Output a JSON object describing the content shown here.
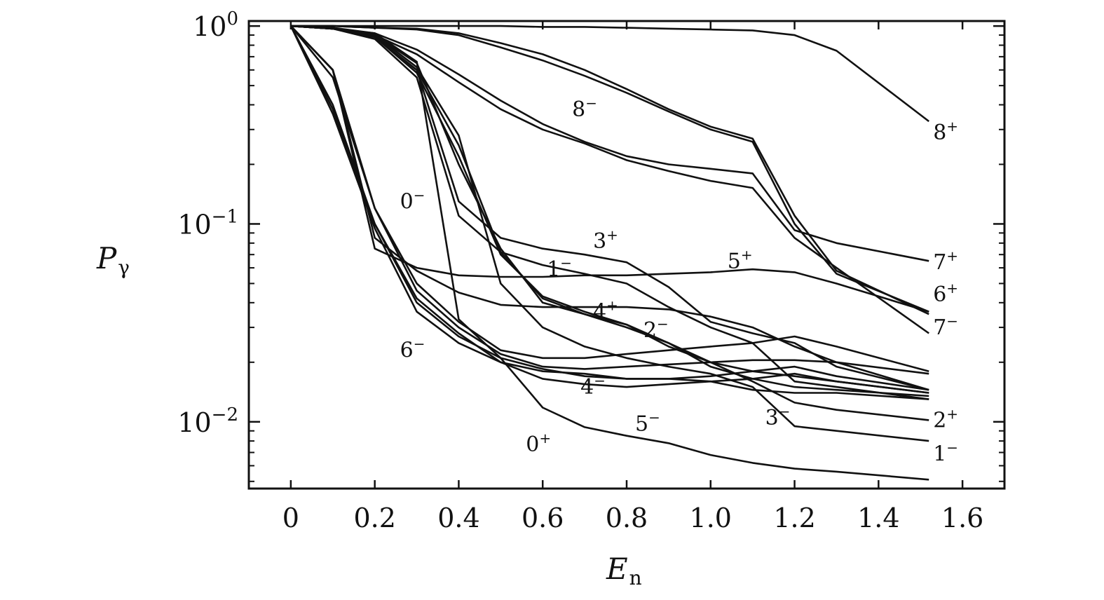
{
  "chart_data": {
    "type": "line",
    "title": "",
    "xlabel": "E",
    "xlabel_sub": "n",
    "ylabel": "P",
    "ylabel_sub": "γ",
    "xlim": [
      -0.1,
      1.7
    ],
    "ylim": [
      0.0046,
      1.06
    ],
    "yscale": "log",
    "grid": false,
    "x_ticks": [
      {
        "value": 0,
        "label": "0"
      },
      {
        "value": 0.2,
        "label": "0.2"
      },
      {
        "value": 0.4,
        "label": "0.4"
      },
      {
        "value": 0.6,
        "label": "0.6"
      },
      {
        "value": 0.8,
        "label": "0.8"
      },
      {
        "value": 1.0,
        "label": "1.0"
      },
      {
        "value": 1.2,
        "label": "1.2"
      },
      {
        "value": 1.4,
        "label": "1.4"
      },
      {
        "value": 1.6,
        "label": "1.6"
      }
    ],
    "y_ticks": [
      {
        "value": 1,
        "base": "10",
        "exp": "0"
      },
      {
        "value": 0.1,
        "base": "10",
        "exp": "−1"
      },
      {
        "value": 0.01,
        "base": "10",
        "exp": "−2"
      }
    ],
    "x": [
      0,
      0.1,
      0.2,
      0.3,
      0.4,
      0.5,
      0.6,
      0.7,
      0.8,
      0.9,
      1.0,
      1.1,
      1.2,
      1.3,
      1.52
    ],
    "series": [
      {
        "values": [
          1,
          1,
          1,
          1,
          1,
          1,
          0.99,
          0.99,
          0.98,
          0.97,
          0.96,
          0.95,
          0.9,
          0.75,
          0.33
        ]
      },
      {
        "values": [
          1,
          1,
          0.98,
          0.97,
          0.92,
          0.82,
          0.72,
          0.6,
          0.48,
          0.38,
          0.31,
          0.27,
          0.11,
          0.058,
          0.035
        ]
      },
      {
        "values": [
          1,
          1,
          0.98,
          0.96,
          0.9,
          0.78,
          0.67,
          0.56,
          0.46,
          0.37,
          0.3,
          0.26,
          0.1,
          0.056,
          0.036
        ]
      },
      {
        "values": [
          1,
          0.98,
          0.92,
          0.76,
          0.57,
          0.42,
          0.32,
          0.26,
          0.22,
          0.2,
          0.19,
          0.18,
          0.093,
          0.08,
          0.065
        ]
      },
      {
        "values": [
          1,
          0.98,
          0.9,
          0.72,
          0.52,
          0.38,
          0.3,
          0.255,
          0.21,
          0.185,
          0.165,
          0.152,
          0.085,
          0.06,
          0.028
        ]
      },
      {
        "values": [
          1,
          0.97,
          0.88,
          0.6,
          0.13,
          0.085,
          0.075,
          0.07,
          0.064,
          0.048,
          0.032,
          0.028,
          0.025,
          0.019,
          0.0145
        ]
      },
      {
        "values": [
          1,
          0.97,
          0.86,
          0.55,
          0.11,
          0.072,
          0.062,
          0.056,
          0.05,
          0.038,
          0.03,
          0.025,
          0.016,
          0.015,
          0.013
        ]
      },
      {
        "values": [
          1,
          0.97,
          0.88,
          0.58,
          0.22,
          0.07,
          0.043,
          0.036,
          0.031,
          0.025,
          0.02,
          0.018,
          0.017,
          0.016,
          0.014
        ]
      },
      {
        "values": [
          1,
          0.97,
          0.88,
          0.6,
          0.25,
          0.072,
          0.042,
          0.035,
          0.03,
          0.025,
          0.019,
          0.0165,
          0.015,
          0.0145,
          0.0135
        ]
      },
      {
        "values": [
          1,
          0.97,
          0.9,
          0.62,
          0.28,
          0.05,
          0.03,
          0.024,
          0.021,
          0.019,
          0.0175,
          0.015,
          0.0095,
          0.009,
          0.008
        ]
      },
      {
        "values": [
          1,
          0.97,
          0.9,
          0.65,
          0.2,
          0.075,
          0.04,
          0.035,
          0.031,
          0.024,
          0.02,
          0.016,
          0.0125,
          0.0115,
          0.0102
        ]
      },
      {
        "values": [
          1,
          0.97,
          0.92,
          0.66,
          0.033,
          0.021,
          0.0118,
          0.0094,
          0.0085,
          0.0078,
          0.0068,
          0.0062,
          0.0058,
          0.0056,
          0.0051
        ]
      },
      {
        "values": [
          1,
          0.6,
          0.075,
          0.06,
          0.055,
          0.054,
          0.054,
          0.055,
          0.055,
          0.056,
          0.057,
          0.059,
          0.057,
          0.05,
          0.036
        ]
      },
      {
        "values": [
          1,
          0.6,
          0.085,
          0.058,
          0.045,
          0.039,
          0.038,
          0.038,
          0.038,
          0.037,
          0.034,
          0.03,
          0.024,
          0.02,
          0.0145
        ]
      },
      {
        "values": [
          1,
          0.6,
          0.12,
          0.05,
          0.032,
          0.023,
          0.021,
          0.021,
          0.022,
          0.023,
          0.024,
          0.025,
          0.027,
          0.024,
          0.018
        ]
      },
      {
        "values": [
          1,
          0.55,
          0.12,
          0.046,
          0.03,
          0.022,
          0.019,
          0.0185,
          0.019,
          0.0195,
          0.02,
          0.0205,
          0.0205,
          0.02,
          0.0175
        ]
      },
      {
        "values": [
          1,
          0.4,
          0.1,
          0.042,
          0.028,
          0.02,
          0.018,
          0.0175,
          0.0165,
          0.0165,
          0.017,
          0.018,
          0.019,
          0.017,
          0.0145
        ]
      },
      {
        "values": [
          1,
          0.38,
          0.1,
          0.04,
          0.027,
          0.021,
          0.0185,
          0.017,
          0.0165,
          0.0165,
          0.016,
          0.0165,
          0.0175,
          0.016,
          0.014
        ]
      },
      {
        "values": [
          1,
          0.36,
          0.095,
          0.036,
          0.025,
          0.02,
          0.0165,
          0.0155,
          0.015,
          0.0155,
          0.016,
          0.0145,
          0.014,
          0.014,
          0.013
        ]
      }
    ],
    "annotations": [
      {
        "base": "8",
        "sup": "+",
        "x": 1.53,
        "y": 0.29
      },
      {
        "base": "7",
        "sup": "+",
        "x": 1.53,
        "y": 0.064
      },
      {
        "base": "6",
        "sup": "+",
        "x": 1.53,
        "y": 0.044
      },
      {
        "base": "7",
        "sup": "−",
        "x": 1.53,
        "y": 0.03
      },
      {
        "base": "2",
        "sup": "+",
        "x": 1.53,
        "y": 0.0102
      },
      {
        "base": "1",
        "sup": "−",
        "x": 1.53,
        "y": 0.0069
      },
      {
        "base": "8",
        "sup": "−",
        "x": 0.67,
        "y": 0.38
      },
      {
        "base": "0",
        "sup": "−",
        "x": 0.26,
        "y": 0.13
      },
      {
        "base": "3",
        "sup": "+",
        "x": 0.72,
        "y": 0.082
      },
      {
        "base": "5",
        "sup": "+",
        "x": 1.04,
        "y": 0.065
      },
      {
        "base": "1",
        "sup": "−",
        "x": 0.61,
        "y": 0.059
      },
      {
        "base": "4",
        "sup": "+",
        "x": 0.72,
        "y": 0.036
      },
      {
        "base": "2",
        "sup": "−",
        "x": 0.84,
        "y": 0.029
      },
      {
        "base": "6",
        "sup": "−",
        "x": 0.26,
        "y": 0.023
      },
      {
        "base": "4",
        "sup": "−",
        "x": 0.69,
        "y": 0.015
      },
      {
        "base": "5",
        "sup": "−",
        "x": 0.82,
        "y": 0.0098
      },
      {
        "base": "3",
        "sup": "−",
        "x": 1.13,
        "y": 0.0105
      },
      {
        "base": "0",
        "sup": "+",
        "x": 0.56,
        "y": 0.0077
      }
    ]
  }
}
